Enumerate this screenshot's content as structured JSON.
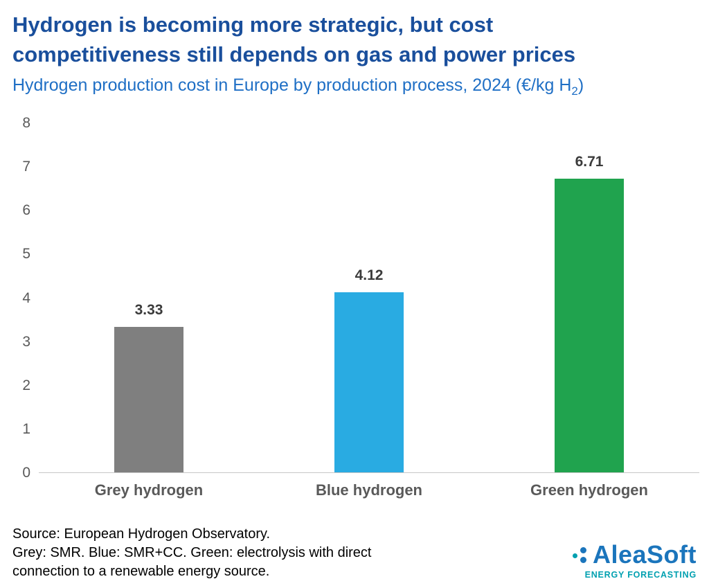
{
  "header": {
    "title_line1": "Hydrogen is becoming more strategic, but cost",
    "title_line2": "competitiveness still depends on gas and power prices",
    "subtitle_prefix": "Hydrogen production cost in Europe by production process, 2024 (€/kg H",
    "subtitle_sub": "2",
    "subtitle_suffix": ")"
  },
  "chart_data": {
    "type": "bar",
    "title": "Hydrogen production cost in Europe by production process, 2024 (€/kg H2)",
    "categories": [
      "Grey hydrogen",
      "Blue hydrogen",
      "Green hydrogen"
    ],
    "values": [
      3.33,
      4.12,
      6.71
    ],
    "value_labels": [
      "3.33",
      "4.12",
      "6.71"
    ],
    "bar_colors": [
      "#7f7f7f",
      "#29abe2",
      "#20a34e"
    ],
    "xlabel": "",
    "ylabel": "",
    "ylim": [
      0,
      8
    ],
    "ytick_step": 1,
    "grid": false,
    "legend": false
  },
  "footer": {
    "source": "Source: European Hydrogen Observatory.",
    "note_line1": "Grey: SMR. Blue: SMR+CC. Green: electrolysis with direct",
    "note_line2": "connection to a renewable energy source."
  },
  "logo": {
    "name": "AleaSoft",
    "tagline": "ENERGY FORECASTING"
  }
}
